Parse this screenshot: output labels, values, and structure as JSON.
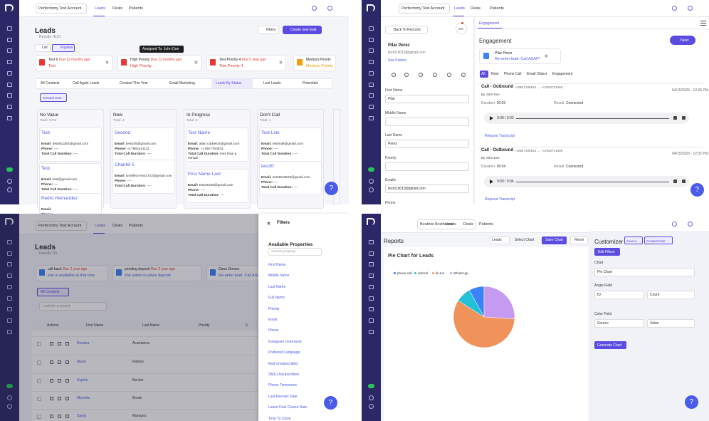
{
  "leads_pipeline": {
    "account": "Perfectomy Test Account",
    "nav": [
      "Leads",
      "Deals",
      "Patients"
    ],
    "title": "Leads",
    "results": "Results: 4101",
    "filters_button": "Filters",
    "create_button": "Create new lead",
    "view_tabs": [
      "List",
      "Pipeline"
    ],
    "tooltip": "Assigned To: John Doe",
    "reminders": [
      {
        "title": "Test 6",
        "due": "Due 12 months ago",
        "text": "Test"
      },
      {
        "title": "High Priority",
        "due": "Due 12 months ago",
        "text": "High Priority"
      },
      {
        "title": "Test Priority 4",
        "due": "Due 5 year ago",
        "text": "Test Priority 4"
      },
      {
        "title": "Medium Priority",
        "text": "Medium Priority"
      }
    ],
    "list_tabs": [
      "All Contacts",
      "Call Again Leads",
      "Created This Year",
      "Email Marketing",
      "Leads By Status",
      "Lost Leads",
      "Potentials"
    ],
    "chip": "Created Date",
    "card_labels": {
      "email": "Email:",
      "phone": "Phone:",
      "duration": "Total Call Duration:"
    },
    "columns": [
      {
        "name": "No Value",
        "total": "Total: 1722",
        "cards": [
          {
            "name": "Test",
            "email": "test452354@gmail.com",
            "phone": "----",
            "duration": "----"
          },
          {
            "name": "Test",
            "email": "test@gmail.com",
            "phone": "----",
            "duration": "----"
          },
          {
            "name": "Pedro Hernandez"
          }
        ]
      },
      {
        "name": "New",
        "total": "Total: 4",
        "cards": [
          {
            "name": "Second",
            "email": "test545@gmail.com",
            "phone": "+17864421111",
            "duration": "----"
          },
          {
            "name": "Chantel 5",
            "email": "onelifecreme2722@gmail.com",
            "phone": "----",
            "duration": "----"
          }
        ]
      },
      {
        "name": "In Progress",
        "total": "Total: 6",
        "cards": [
          {
            "name": "Test Name",
            "email": "alain.curbelo4@gmail.com",
            "phone": "+17867753831",
            "duration": "less than a minute"
          },
          {
            "name": "First Name Last",
            "email": "test44345@gmail.com",
            "phone": "----",
            "duration": "----"
          }
        ]
      },
      {
        "name": "Don't Call",
        "total": "Total: 1",
        "cards": [
          {
            "name": "Test Link",
            "email": "testmail@gmail.com",
            "phone": "----",
            "duration": "----"
          },
          {
            "name": "test30",
            "email": "test4523525@gmail.com",
            "phone": "----",
            "duration": "----"
          }
        ]
      }
    ],
    "help": "?"
  },
  "lead_detail": {
    "account": "Perfectomy Test Account",
    "nav": [
      "Leads",
      "Deals",
      "Patients"
    ],
    "back": "Back To Records",
    "progress": "0%",
    "name": "Pilar Perez",
    "email": "test319019@gmail.com",
    "see_patient": "See Patient",
    "fields": [
      {
        "label": "First Name",
        "value": "Pilar"
      },
      {
        "label": "Middle Name"
      },
      {
        "label": "Last Name",
        "value": "Perez"
      },
      {
        "label": "Priority"
      },
      {
        "label": "Emails",
        "value": "test319019@gmail.com"
      },
      {
        "label": "Phone"
      }
    ],
    "tab": "Engagement",
    "heading": "Engagement",
    "next": "Next",
    "notice": {
      "name": "Pilar Perez",
      "text": "Re-enter lead: Call ASAP!"
    },
    "filters": [
      "All",
      "Note",
      "Phone Call",
      "Email Object",
      "Engagement"
    ],
    "calls": [
      {
        "type": "Call - Outbound",
        "numbers": "+19547105814 → +17862731669",
        "date": "04/15/2025 - 12:06 PM",
        "by": "By John Doe",
        "duration_label": "Duration:",
        "duration": "00:03",
        "result_label": "Result:",
        "result": "Connected",
        "player": "0:00 / 0:03",
        "transcript": "Request Transcript"
      },
      {
        "type": "Call - Outbound",
        "numbers": "+19547105814 → +17862731669",
        "date": "04/15/2025 - 12:02 PM",
        "by": "By John Doe",
        "duration_label": "Duration:",
        "duration": "00:04",
        "result_label": "Result:",
        "result": "Connected",
        "player": "0:00 / 0:04",
        "transcript": "Request Transcript"
      }
    ],
    "help": "?"
  },
  "leads_list": {
    "account": "Perfectomy Test Account",
    "nav": [
      "Leads",
      "Deals",
      "Patients"
    ],
    "title": "Leads",
    "results": "Results: 33",
    "reminders": [
      {
        "title": "call back",
        "due": "Due 2 year ago",
        "text": "she is available at that time"
      },
      {
        "title": "pending deposit",
        "due": "Due 2 year ago",
        "text": "she wants to place deposit"
      },
      {
        "title": "Dana Gomez",
        "text": "Re-enter lead: Call ASAP!"
      }
    ],
    "tab": "All Contacts",
    "search": "Look for a record",
    "columns": [
      "Actions",
      "First Name",
      "Last Name",
      "Priority",
      "E"
    ],
    "rows": [
      [
        "Roxana",
        "Acamanna"
      ],
      [
        "Maria",
        "Ramos"
      ],
      [
        "Sophie",
        "Becker"
      ],
      [
        "Michelle",
        "Brook"
      ],
      [
        "Sarah",
        "Marquez"
      ]
    ],
    "filters": {
      "title": "Filters",
      "heading": "Available Properties",
      "search": "Search property",
      "properties": [
        "First Name",
        "Middle Name",
        "Last Name",
        "Full Name",
        "Priority",
        "Email",
        "Phone",
        "Instagram Username",
        "Preferred Language",
        "Mail Unsubscribed",
        "SMS Unsubscribed",
        "Phone Timezones",
        "Last Reenter Date",
        "Latest Deal Closed Date",
        "Time To Close"
      ]
    },
    "help": "?"
  },
  "reports": {
    "account": "Boutinic Aesthetics",
    "nav": [
      "Leads",
      "Deals",
      "Patients"
    ],
    "title": "Reports",
    "entity": "Leads",
    "select_chart": "Select Chart",
    "save": "Save Chart",
    "reset": "Reset",
    "customizer": {
      "title": "Customizer",
      "chips": [
        "Source",
        "Created Date"
      ],
      "edit": "Edit Filters",
      "chart_label": "Chart",
      "chart_value": "Pie Chart",
      "angle_label": "Angle Field",
      "angle": [
        "ID",
        "Count"
      ],
      "color_label": "Color Field",
      "color": [
        "Source",
        "Value"
      ],
      "generate": "Generate Chart"
    },
    "help": "?"
  },
  "chart_data": {
    "type": "pie",
    "title": "Pie Chart for Leads",
    "categories": [
      "phone call",
      "referral",
      "tik-tok",
      "WhatsApp"
    ],
    "values": [
      8,
      8,
      58,
      26
    ],
    "colors": [
      "#3b82f6",
      "#22c1d6",
      "#f0935a",
      "#c79af2"
    ]
  }
}
